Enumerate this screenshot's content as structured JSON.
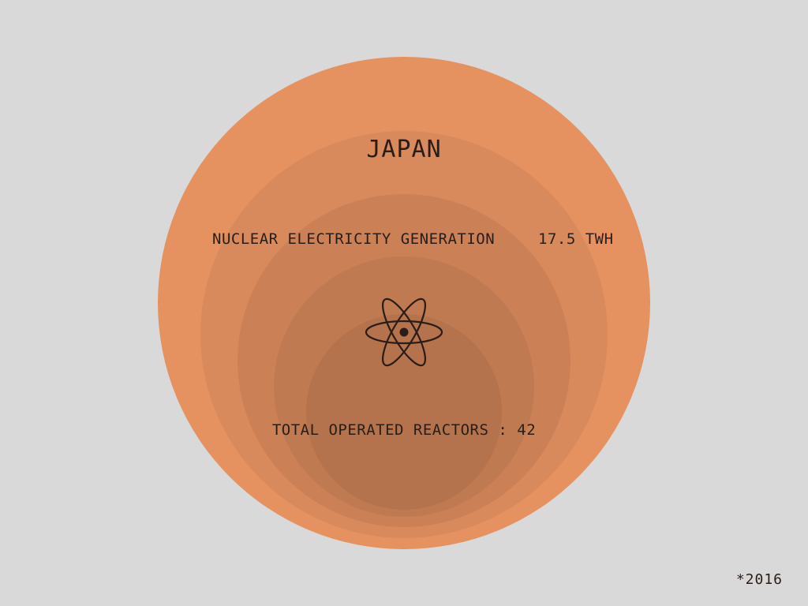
{
  "title": "JAPAN",
  "generation": {
    "label": "NUCLEAR ELECTRICITY GENERATION",
    "value": "17.5 TWh"
  },
  "reactors": {
    "label": "TOTAL OPERATED REACTORS : 42"
  },
  "footnote": "*2016",
  "icon": "atom-icon",
  "colors": {
    "background": "#d9d9d9",
    "ring_1": "#e69260",
    "ring_2": "#d98a5c",
    "ring_3": "#cc8055",
    "ring_4": "#c07a52",
    "ring_5": "#b4734d",
    "text": "#2a1d17"
  }
}
